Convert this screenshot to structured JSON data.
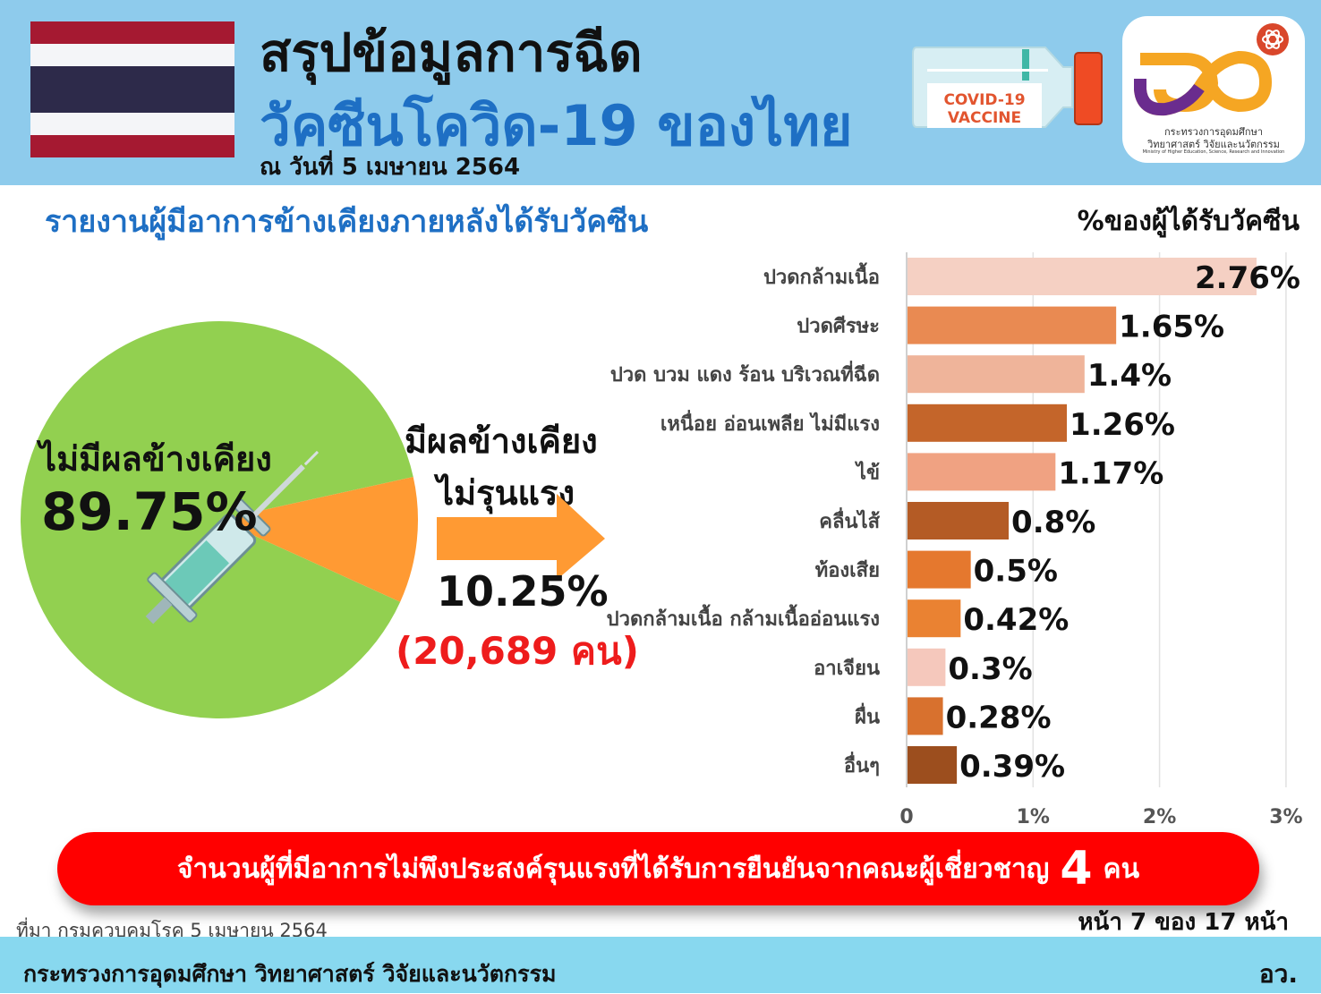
{
  "header": {
    "title_line1": "สรุปข้อมูลการฉีด",
    "title_line2": "วัคซีนโควิด-19 ของไทย",
    "date": "ณ วันที่ 5 เมษายน 2564",
    "vial_label_line1": "COVID-19",
    "vial_label_line2": "VACCINE",
    "logo_text_line1": "กระทรวงการอุดมศึกษา",
    "logo_text_line2": "วิทยาศาสตร์ วิจัยและนวัตกรรม",
    "logo_text_line3": "Ministry of Higher Education, Science, Research and Innovation"
  },
  "subtitle": "รายงานผู้มีอาการข้างเคียงภายหลังได้รับวัคซีน",
  "colors": {
    "header_bg": "#8ecbec",
    "title_blue": "#1e6fc4",
    "pie_green": "#92d050",
    "pie_orange": "#ff9a33",
    "banner_red": "#ff0000",
    "footer_bg": "#88d8ef"
  },
  "chart_data": [
    {
      "type": "pie",
      "slices": [
        {
          "label": "ไม่มีผลข้างเคียง",
          "value": 89.75,
          "value_label": "89.75%",
          "color": "#92d050"
        },
        {
          "label": "มีผลข้างเคียง ไม่รุนแรง",
          "label_line1": "มีผลข้างเคียง",
          "label_line2": "ไม่รุนแรง",
          "value": 10.25,
          "value_label": "10.25%",
          "count_label": "(20,689 คน)",
          "color": "#ff9a33"
        }
      ]
    },
    {
      "type": "bar",
      "orientation": "horizontal",
      "unit_label": "%ของผู้ได้รับวัคซีน",
      "categories": [
        "ปวดกล้ามเนื้อ",
        "ปวดศีรษะ",
        "ปวด บวม แดง ร้อน บริเวณที่ฉีด",
        "เหนื่อย อ่อนเพลีย ไม่มีแรง",
        "ไข้",
        "คลื่นไส้",
        "ท้องเสีย",
        "ปวดกล้ามเนื้อ กล้ามเนื้ออ่อนแรง",
        "อาเจียน",
        "ผื่น",
        "อื่นๆ"
      ],
      "values": [
        2.76,
        1.65,
        1.4,
        1.26,
        1.17,
        0.8,
        0.5,
        0.42,
        0.3,
        0.28,
        0.39
      ],
      "value_labels": [
        "2.76%",
        "1.65%",
        "1.4%",
        "1.26%",
        "1.17%",
        "0.8%",
        "0.5%",
        "0.42%",
        "0.3%",
        "0.28%",
        "0.39%"
      ],
      "colors": [
        "#f5d0c3",
        "#e98a52",
        "#efb49a",
        "#c4652a",
        "#f0a282",
        "#b45b25",
        "#e5782e",
        "#ea8232",
        "#f5c8bc",
        "#d8712e",
        "#9c4e1e"
      ],
      "xlim": [
        0,
        3
      ],
      "xticks": [
        "0",
        "1%",
        "2%",
        "3%"
      ],
      "grid": true
    }
  ],
  "banner": {
    "text": "จำนวนผู้ที่มีอาการไม่พึงประสงค์รุนแรงที่ได้รับการยืนยันจากคณะผู้เชี่ยวชาญ",
    "count": "4",
    "unit": "คน"
  },
  "source": "ที่มา กรมควบคุมโรค 5 เมษายน 2564",
  "page_indicator": "หน้า 7 ของ 17 หน้า",
  "footer": {
    "ministry": "กระทรวงการอุดมศึกษา วิทยาศาสตร์ วิจัยและนวัตกรรม",
    "abbr": "อว."
  }
}
